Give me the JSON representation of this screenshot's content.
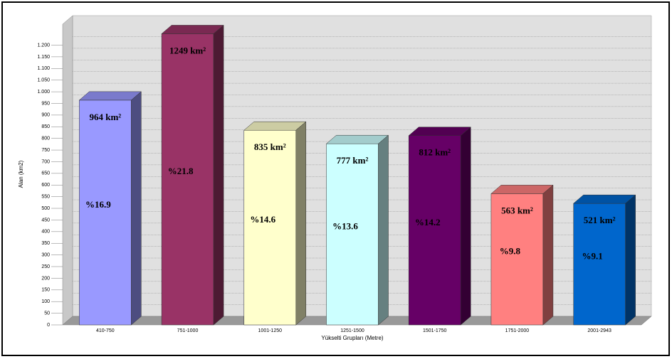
{
  "chart_data": {
    "type": "bar3d",
    "y_label": "Alan (km2)",
    "x_label": "Yükselti Grupları (Metre)",
    "categories": [
      "410-750",
      "751-1000",
      "1001-1250",
      "1251-1500",
      "1501-1750",
      "1751-2000",
      "2001-2943"
    ],
    "values": [
      964,
      1249,
      835,
      777,
      812,
      563,
      521
    ],
    "value_labels": [
      "964 km²",
      "1249 km²",
      "835 km²",
      "777 km²",
      "812 km²",
      "563 km²",
      "521 km²"
    ],
    "share_labels": [
      "%16.9",
      "%21.8",
      "%14.6",
      "%13.6",
      "%14.2",
      "%9.8",
      "%9.1"
    ],
    "colors": [
      "#9999ff",
      "#993366",
      "#ffffcc",
      "#ccffff",
      "#660066",
      "#ff8080",
      "#0066cc"
    ],
    "ylim": [
      0,
      1290
    ],
    "yticks": [
      0,
      50,
      100,
      150,
      200,
      250,
      300,
      350,
      400,
      450,
      500,
      550,
      600,
      650,
      700,
      750,
      800,
      850,
      900,
      950,
      {
        "value": 1000,
        "label": "1.000"
      },
      {
        "value": 1050,
        "label": "1.050"
      },
      {
        "value": 1100,
        "label": "1.100"
      },
      {
        "value": 1150,
        "label": "1.150"
      },
      {
        "value": 1200,
        "label": "1.200"
      }
    ],
    "grid": true
  }
}
